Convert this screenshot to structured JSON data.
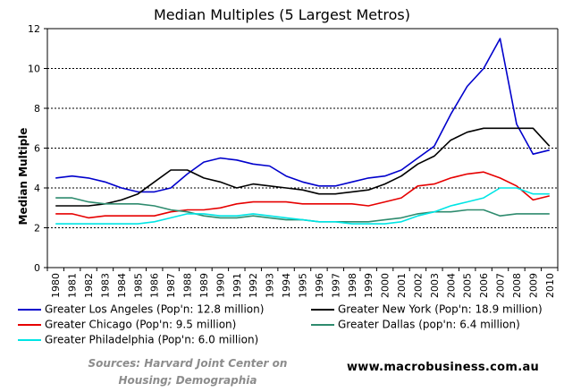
{
  "chart_data": {
    "type": "line",
    "title": "Median Multiples (5 Largest Metros)",
    "xlabel": "",
    "ylabel": "Median Multiple",
    "ylim": [
      0,
      12
    ],
    "yticks": [
      "0",
      "2",
      "4",
      "6",
      "8",
      "10",
      "12"
    ],
    "grid": "horizontal dashed",
    "categories": [
      "1980",
      "1981",
      "1982",
      "1983",
      "1984",
      "1985",
      "1986",
      "1987",
      "1988",
      "1989",
      "1990",
      "1991",
      "1992",
      "1993",
      "1994",
      "1995",
      "1996",
      "1997",
      "1998",
      "1999",
      "2000",
      "2001",
      "2002",
      "2003",
      "2004",
      "2005",
      "2006",
      "2007",
      "2008",
      "2009",
      "2010"
    ],
    "series": [
      {
        "name": "Greater Los Angeles (Pop'n: 12.8 million)",
        "color": "#0000cc",
        "values": [
          4.5,
          4.6,
          4.5,
          4.3,
          4.0,
          3.8,
          3.8,
          4.0,
          4.7,
          5.3,
          5.5,
          5.4,
          5.2,
          5.1,
          4.6,
          4.3,
          4.1,
          4.1,
          4.3,
          4.5,
          4.6,
          4.9,
          5.5,
          6.1,
          7.7,
          9.1,
          10.0,
          11.5,
          7.2,
          5.7,
          5.9
        ]
      },
      {
        "name": "Greater New York (Pop'n: 18.9 million)",
        "color": "#000000",
        "values": [
          3.1,
          3.1,
          3.1,
          3.2,
          3.4,
          3.7,
          4.3,
          4.9,
          4.9,
          4.5,
          4.3,
          4.0,
          4.2,
          4.1,
          4.0,
          3.9,
          3.7,
          3.7,
          3.8,
          3.9,
          4.2,
          4.6,
          5.2,
          5.6,
          6.4,
          6.8,
          7.0,
          7.0,
          7.0,
          7.0,
          6.1
        ]
      },
      {
        "name": "Greater Chicago (Pop'n: 9.5 million)",
        "color": "#e60000",
        "values": [
          2.7,
          2.7,
          2.5,
          2.6,
          2.6,
          2.6,
          2.6,
          2.8,
          2.9,
          2.9,
          3.0,
          3.2,
          3.3,
          3.3,
          3.3,
          3.2,
          3.2,
          3.2,
          3.2,
          3.1,
          3.3,
          3.5,
          4.1,
          4.2,
          4.5,
          4.7,
          4.8,
          4.5,
          4.1,
          3.4,
          3.6
        ]
      },
      {
        "name": "Greater Dallas (pop'n: 6.4 million)",
        "color": "#2e8b6e",
        "values": [
          3.5,
          3.5,
          3.3,
          3.2,
          3.2,
          3.2,
          3.1,
          2.9,
          2.8,
          2.6,
          2.5,
          2.5,
          2.6,
          2.5,
          2.4,
          2.4,
          2.3,
          2.3,
          2.3,
          2.3,
          2.4,
          2.5,
          2.7,
          2.8,
          2.8,
          2.9,
          2.9,
          2.6,
          2.7,
          2.7,
          2.7
        ]
      },
      {
        "name": "Greater Philadelphia (Pop'n: 6.0 million)",
        "color": "#00e5e5",
        "values": [
          2.2,
          2.2,
          2.2,
          2.2,
          2.2,
          2.2,
          2.3,
          2.5,
          2.7,
          2.7,
          2.6,
          2.6,
          2.7,
          2.6,
          2.5,
          2.4,
          2.3,
          2.3,
          2.2,
          2.2,
          2.2,
          2.3,
          2.6,
          2.8,
          3.1,
          3.3,
          3.5,
          4.0,
          4.0,
          3.7,
          3.7
        ]
      }
    ],
    "legend": "bottom"
  },
  "sources_line1": "Sources: Harvard Joint Center on",
  "sources_line2": "Housing; Demographia",
  "website": "www.macrobusiness.com.au"
}
